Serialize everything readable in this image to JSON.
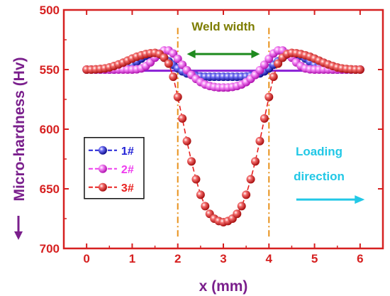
{
  "chart_data": {
    "type": "line",
    "xlabel": "x (mm)",
    "ylabel": "Micro-hardness (Hv)",
    "xlim": [
      -0.5,
      6.5
    ],
    "ylim": [
      700,
      500
    ],
    "y_axis_inverted": true,
    "x_ticks": [
      0,
      1,
      2,
      3,
      4,
      5,
      6
    ],
    "y_ticks": [
      500,
      550,
      600,
      650,
      700
    ],
    "x_tick_labels": [
      "0",
      "1",
      "2",
      "3",
      "4",
      "5",
      "6"
    ],
    "y_tick_labels": [
      "500",
      "550",
      "600",
      "650",
      "700"
    ],
    "grid": false,
    "legend_position": "left-middle",
    "series": [
      {
        "name": "1#",
        "color": "#1f1fd6",
        "x": [
          0,
          0.1,
          0.2,
          0.3,
          0.4,
          0.5,
          0.6,
          0.7,
          0.8,
          0.9,
          1.0,
          1.1,
          1.2,
          1.3,
          1.4,
          1.5,
          1.6,
          1.7,
          1.8,
          1.9,
          2.0,
          2.1,
          2.2,
          2.3,
          2.4,
          2.5,
          2.6,
          2.7,
          2.8,
          2.9,
          3.0,
          3.1,
          3.2,
          3.3,
          3.4,
          3.5,
          3.6,
          3.7,
          3.8,
          3.9,
          4.0,
          4.1,
          4.2,
          4.3,
          4.4,
          4.5,
          4.6,
          4.7,
          4.8,
          4.9,
          5.0,
          5.1,
          5.2,
          5.3,
          5.4,
          5.5,
          5.6,
          5.7,
          5.8,
          5.9,
          6.0
        ],
        "values": [
          550,
          550,
          550,
          550,
          550,
          550,
          550,
          549.8,
          549.2,
          548,
          546,
          543.5,
          540.8,
          538.5,
          537,
          536.5,
          537.5,
          540,
          543,
          546,
          549,
          551.5,
          553.2,
          554.5,
          555.3,
          555.8,
          556,
          556,
          556,
          556,
          556,
          556,
          556,
          556,
          556,
          555.8,
          555.3,
          554.5,
          553.2,
          551.5,
          549,
          546,
          543,
          540,
          537.5,
          536.5,
          537,
          538.5,
          540.8,
          543.5,
          546,
          548,
          549.2,
          549.8,
          550,
          550,
          550,
          550,
          550,
          550,
          550
        ]
      },
      {
        "name": "2#",
        "color": "#ee3bee",
        "x": [
          0,
          0.1,
          0.2,
          0.3,
          0.4,
          0.5,
          0.6,
          0.7,
          0.8,
          0.9,
          1.0,
          1.1,
          1.2,
          1.3,
          1.4,
          1.5,
          1.6,
          1.7,
          1.8,
          1.9,
          2.0,
          2.1,
          2.2,
          2.3,
          2.4,
          2.5,
          2.6,
          2.7,
          2.8,
          2.9,
          3.0,
          3.1,
          3.2,
          3.3,
          3.4,
          3.5,
          3.6,
          3.7,
          3.8,
          3.9,
          4.0,
          4.1,
          4.2,
          4.3,
          4.4,
          4.5,
          4.6,
          4.7,
          4.8,
          4.9,
          5.0,
          5.1,
          5.2,
          5.3,
          5.4,
          5.5,
          5.6,
          5.7,
          5.8,
          5.9,
          6.0
        ],
        "values": [
          550,
          550,
          550,
          550,
          550,
          550,
          550,
          550,
          550,
          550,
          550,
          549.8,
          549,
          547,
          544,
          540,
          536.5,
          534,
          534,
          536.5,
          541,
          546,
          550.5,
          554.5,
          557.8,
          560.5,
          562.5,
          563.8,
          564.6,
          565,
          565,
          565,
          564.6,
          563.8,
          562.5,
          560.5,
          557.8,
          554.5,
          550.5,
          546,
          541,
          536.5,
          534,
          534,
          536.5,
          540,
          544,
          547,
          549,
          549.8,
          550,
          550,
          550,
          550,
          550,
          550,
          550,
          550,
          550,
          550,
          550
        ]
      },
      {
        "name": "3#",
        "color": "#e8201f",
        "x": [
          0,
          0.1,
          0.2,
          0.3,
          0.4,
          0.5,
          0.6,
          0.7,
          0.8,
          0.9,
          1.0,
          1.1,
          1.2,
          1.3,
          1.4,
          1.5,
          1.6,
          1.7,
          1.8,
          1.9,
          2.0,
          2.1,
          2.2,
          2.3,
          2.4,
          2.5,
          2.6,
          2.7,
          2.8,
          2.9,
          3.0,
          3.1,
          3.2,
          3.3,
          3.4,
          3.5,
          3.6,
          3.7,
          3.8,
          3.9,
          4.0,
          4.1,
          4.2,
          4.3,
          4.4,
          4.5,
          4.6,
          4.7,
          4.8,
          4.9,
          5.0,
          5.1,
          5.2,
          5.3,
          5.4,
          5.5,
          5.6,
          5.7,
          5.8,
          5.9,
          6.0
        ],
        "values": [
          550,
          550,
          549.8,
          549.5,
          549,
          548.2,
          547,
          545.7,
          544.2,
          542.5,
          540.8,
          539.2,
          538,
          537,
          536.3,
          536,
          537,
          540,
          545,
          556,
          573,
          591,
          610,
          627,
          642,
          655,
          664.5,
          671,
          675,
          677,
          678,
          677,
          675,
          671,
          664.5,
          655,
          642,
          627,
          610,
          591,
          573,
          556,
          545,
          540,
          537,
          536,
          536.3,
          537,
          538,
          539.2,
          540.8,
          542.5,
          544.2,
          545.7,
          547,
          548.2,
          549,
          549.5,
          549.8,
          550,
          550
        ]
      }
    ],
    "reference_line": {
      "y": 551,
      "x_range": [
        0,
        6
      ],
      "color": "#8a1fd6"
    },
    "vertical_lines": [
      {
        "x": 2,
        "color": "#e8911a",
        "style": "dash-dot"
      },
      {
        "x": 4,
        "color": "#e8911a",
        "style": "dash-dot"
      }
    ],
    "annotations": {
      "weld_width": {
        "text": "Weld width",
        "color": "#7d7d00",
        "arrow_color": "#1e8a1e",
        "x_range": [
          2.2,
          3.8
        ],
        "y": 537
      },
      "loading_direction": {
        "text": [
          "Loading",
          "direction"
        ],
        "color": "#22c8e6",
        "x_range": [
          4.6,
          6.1
        ],
        "y": 659
      }
    },
    "axis_color": "#d62020",
    "ylabel_color": "#7a1f8c"
  }
}
